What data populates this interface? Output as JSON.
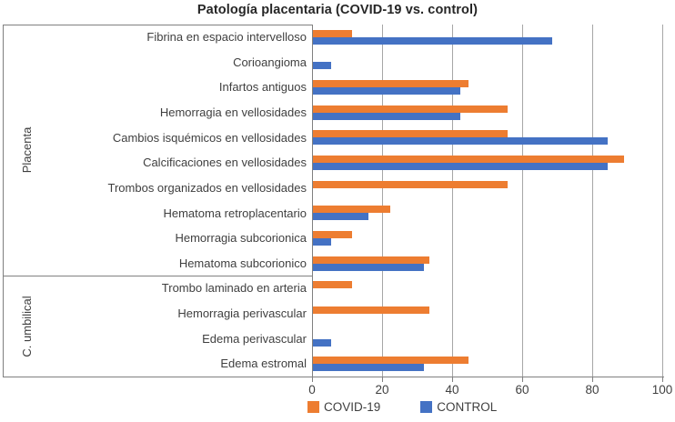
{
  "chart_data": {
    "type": "bar",
    "orientation": "horizontal",
    "title": "Patología placentaria (COVID-19 vs. control)",
    "categories": [
      "Fibrina en espacio intervelloso",
      "Corioangioma",
      "Infartos antiguos",
      "Hemorragia en vellosidades",
      "Cambios isquémicos en vellosidades",
      "Calcificaciones en vellosidades",
      "Trombos organizados en vellosidades",
      "Hematoma retroplacentario",
      "Hemorragia subcorionica",
      "Hematoma subcorionico",
      "Trombo laminado en arteria",
      "Hemorragia perivascular",
      "Edema perivascular",
      "Edema estromal"
    ],
    "groups": [
      {
        "label": "Placenta",
        "span": 10
      },
      {
        "label": "C. umbilical",
        "span": 4
      }
    ],
    "series": [
      {
        "name": "COVID-19",
        "color": "#ED7D31",
        "values": [
          11.1,
          0,
          44.4,
          55.6,
          55.6,
          88.9,
          55.6,
          22.2,
          11.1,
          33.3,
          11.1,
          33.3,
          0,
          44.4
        ]
      },
      {
        "name": "CONTROL",
        "color": "#4472C4",
        "values": [
          68.4,
          5.3,
          42.1,
          42.1,
          84.2,
          84.2,
          0,
          15.8,
          5.3,
          31.6,
          0,
          0,
          5.3,
          31.6
        ]
      }
    ],
    "xlim": [
      0,
      100
    ],
    "x_ticks": [
      0,
      20,
      40,
      60,
      80,
      100
    ],
    "grid": true,
    "legend_position": "bottom"
  },
  "colors": {
    "bar_covid": "#ED7D31",
    "bar_control": "#4472C4",
    "gridline": "#a6a6a6",
    "axis_line": "#808080",
    "text": "#3f3f3f",
    "title_text": "#262626",
    "background": "#ffffff"
  }
}
